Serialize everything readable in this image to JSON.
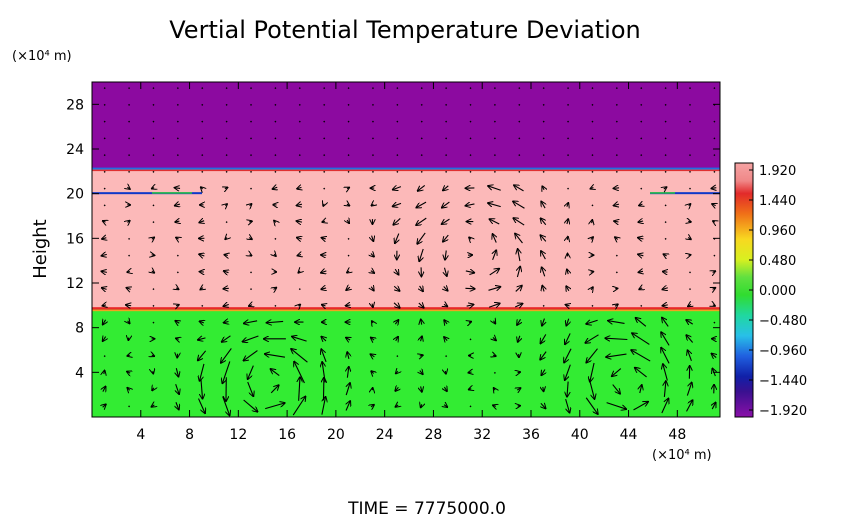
{
  "chart_data": {
    "type": "heatmap",
    "title": "Vertial Potential Temperature Deviation",
    "ylabel": "Height",
    "xunit": "(×10⁴ m)",
    "yunit": "(×10⁴ m)",
    "xlim": [
      0,
      51.5
    ],
    "ylim": [
      0,
      30
    ],
    "xticks": [
      4,
      8,
      12,
      16,
      20,
      24,
      28,
      32,
      36,
      40,
      44,
      48
    ],
    "yticks": [
      4,
      8,
      12,
      16,
      20,
      24,
      28
    ],
    "x_tick_labels": [
      "4",
      "8",
      "12",
      "16",
      "20",
      "24",
      "28",
      "32",
      "36",
      "40",
      "44",
      "48"
    ],
    "y_tick_labels": [
      "4",
      "8",
      "12",
      "16",
      "20",
      "24",
      "28"
    ],
    "colorbar": {
      "ticks": [
        1.92,
        1.44,
        0.96,
        0.48,
        0.0,
        -0.48,
        -0.96,
        -1.44,
        -1.92
      ],
      "tick_labels": [
        "1.920",
        "1.440",
        "0.960",
        "0.480",
        "0.000",
        "−0.480",
        "−0.960",
        "−1.440",
        "−1.920"
      ],
      "colors": [
        "#f5a0a0",
        "#e02828",
        "#f07818",
        "#f5e020",
        "#38d838",
        "#20d0a0",
        "#30b8e8",
        "#1850d8",
        "#101898",
        "#8a10a0"
      ]
    },
    "bands": [
      {
        "from": 0,
        "to": 9.7,
        "value": 0.2,
        "color": "#33ec33"
      },
      {
        "from": 9.7,
        "to": 22.2,
        "value": 1.92,
        "color": "#fcb9b9"
      },
      {
        "from": 22.2,
        "to": 30,
        "value": -1.92,
        "color": "#8c0aa0"
      }
    ],
    "vector_field": {
      "cells_lower": [
        [
          14.5,
          3.0
        ],
        [
          43.5,
          3.0
        ]
      ],
      "cells_upper": [
        [
          31.0,
          15.0
        ]
      ]
    },
    "time_label": "TIME  =  7775000.0"
  }
}
